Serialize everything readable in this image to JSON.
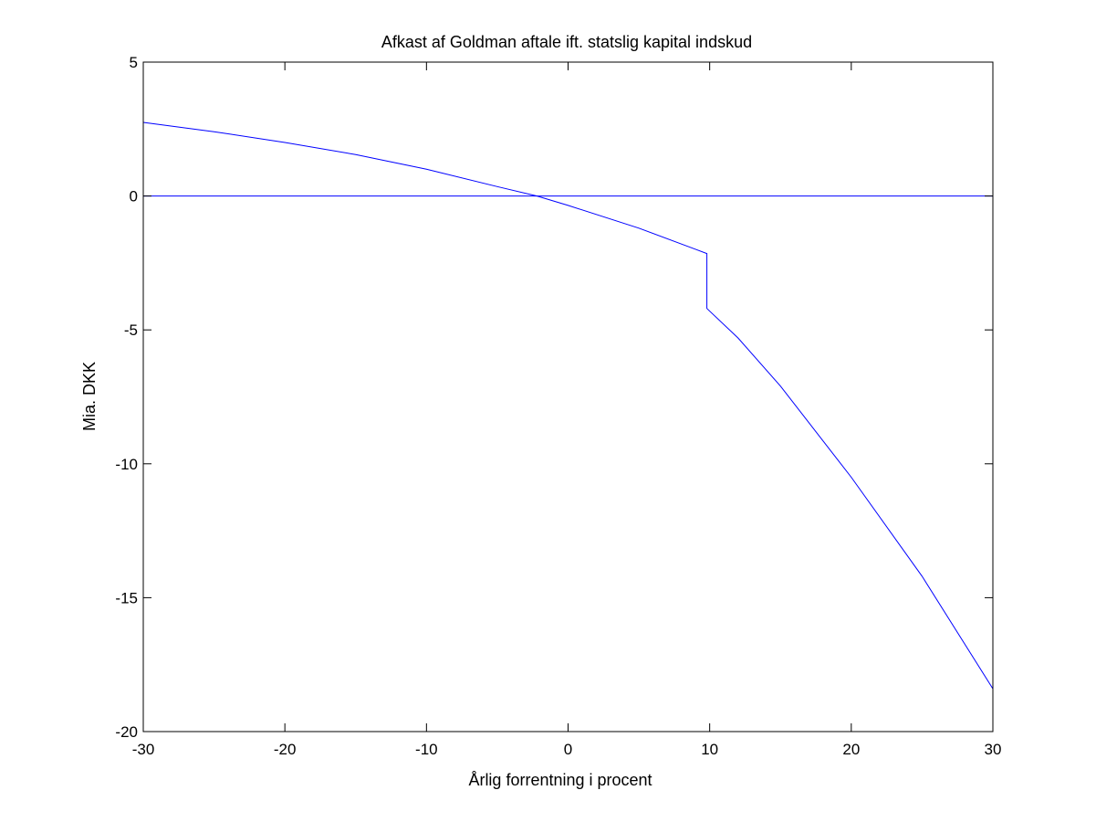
{
  "chart_data": {
    "type": "line",
    "title": "Afkast af Goldman aftale ift. statslig kapital indskud",
    "xlabel": "Årlig forrentning i procent",
    "ylabel": "Mia. DKK",
    "xlim": [
      -30,
      30
    ],
    "ylim": [
      -20,
      5
    ],
    "xticks": [
      -30,
      -20,
      -10,
      0,
      10,
      20,
      30
    ],
    "yticks": [
      5,
      0,
      -5,
      -10,
      -15,
      -20
    ],
    "xtick_labels": [
      "-30",
      "-20",
      "-10",
      "0",
      "10",
      "20",
      "30"
    ],
    "ytick_labels": [
      "5",
      "0",
      "-5",
      "-10",
      "-15",
      "-20"
    ],
    "grid": false,
    "line_color": "#0000ff",
    "series": [
      {
        "x": [
          -30,
          -25,
          -20,
          -15,
          -10,
          -5,
          -2.2,
          0,
          5,
          9.8,
          9.8,
          10,
          12,
          15,
          20,
          25,
          30
        ],
        "y": [
          2.75,
          2.4,
          2.0,
          1.55,
          1.0,
          0.35,
          0.0,
          -0.35,
          -1.2,
          -2.15,
          -4.2,
          -4.3,
          -5.3,
          -7.1,
          -10.5,
          -14.2,
          -18.4
        ]
      },
      {
        "x": [
          -30,
          30
        ],
        "y": [
          0,
          0
        ]
      }
    ]
  }
}
